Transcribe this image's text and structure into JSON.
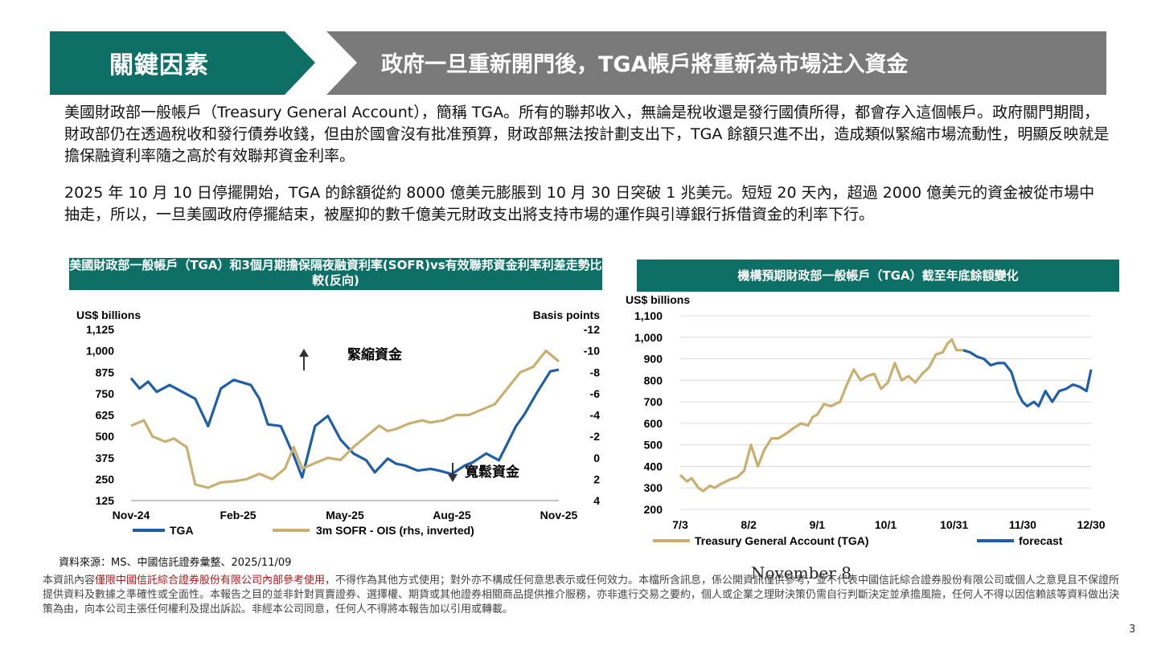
{
  "header": {
    "left_title": "關鍵因素",
    "right_title": "政府一旦重新開門後，TGA帳戶將重新為市場注入資金"
  },
  "body": {
    "para1": "美國財政部一般帳戶（Treasury General Account），簡稱 TGA。所有的聯邦收入，無論是稅收還是發行國債所得，都會存入這個帳戶。政府關門期間，財政部仍在透過稅收和發行債券收錢，但由於國會沒有批准預算，財政部無法按計劃支出下，TGA 餘額只進不出，造成類似緊縮市場流動性，明顯反映就是擔保融資利率隨之高於有效聯邦資金利率。",
    "para2": "2025 年 10 月 10 日停擺開始，TGA 的餘額從約 8000 億美元膨脹到 10 月 30 日突破 1 兆美元。短短 20 天內，超過 2000 億美元的資金被從市場中抽走，所以，一旦美國政府停擺結束，被壓抑的數千億美元財政支出將支持市場的運作與引導銀行拆借資金的利率下行。"
  },
  "chart_left": {
    "title": "美國財政部一般帳戶（TGA）和3個月期擔保隔夜融資利率(SOFR)vs有效聯邦資金利率利差走勢比較(反向)"
  },
  "chart_right": {
    "title": "機構預期財政部一般帳戶（TGA）截至年底餘額變化"
  },
  "chart_data": [
    {
      "type": "line",
      "ylabel_left": "US$ billions",
      "ylabel_right": "Basis points",
      "y_left_ticks": [
        "1,125",
        "1,000",
        "875",
        "750",
        "625",
        "500",
        "375",
        "250",
        "125"
      ],
      "y_right_ticks": [
        "-12",
        "-10",
        "-8",
        "-6",
        "-4",
        "-2",
        "0",
        "2",
        "4"
      ],
      "ylim_left": [
        125,
        1125
      ],
      "ylim_right": [
        4,
        -12
      ],
      "x_ticks": [
        "Nov-24",
        "Feb-25",
        "May-25",
        "Aug-25",
        "Nov-25"
      ],
      "annotations": {
        "up": "緊縮資金",
        "down": "寬鬆資金"
      },
      "series": [
        {
          "name": "TGA",
          "axis": "left",
          "color": "#1f5fa8",
          "t": [
            0,
            2,
            4,
            6,
            9,
            12,
            15,
            18,
            21,
            24,
            28,
            30,
            32,
            35,
            38,
            40,
            43,
            46,
            49,
            52,
            55,
            57,
            60,
            62,
            64,
            67,
            70,
            72,
            75,
            78,
            80,
            83,
            86,
            88,
            90,
            92,
            95,
            98,
            100
          ],
          "values": [
            840,
            780,
            820,
            760,
            800,
            760,
            720,
            560,
            780,
            830,
            800,
            720,
            570,
            560,
            390,
            260,
            560,
            620,
            480,
            400,
            360,
            290,
            370,
            340,
            330,
            300,
            310,
            300,
            280,
            330,
            350,
            400,
            360,
            460,
            560,
            630,
            760,
            880,
            890
          ]
        },
        {
          "name": "3m SOFR - OIS (rhs, inverted)",
          "axis": "right",
          "color": "#c9b071",
          "t": [
            0,
            3,
            5,
            8,
            10,
            13,
            15,
            18,
            21,
            24,
            27,
            30,
            33,
            36,
            38,
            40,
            43,
            46,
            49,
            52,
            55,
            58,
            60,
            62,
            65,
            68,
            70,
            73,
            76,
            79,
            82,
            85,
            88,
            91,
            94,
            97,
            100
          ],
          "values": [
            -3,
            -3.5,
            -2,
            -1.5,
            -1.8,
            -1,
            2.5,
            2.8,
            2.3,
            2.2,
            2,
            1.5,
            2,
            1,
            -1,
            1,
            0.5,
            0,
            0.2,
            -1,
            -2,
            -3,
            -2.5,
            -2.7,
            -3.2,
            -3.5,
            -3.3,
            -3.5,
            -4,
            -4,
            -4.5,
            -5,
            -6.5,
            -8,
            -8.5,
            -10,
            -9
          ]
        }
      ]
    },
    {
      "type": "line",
      "ylabel": "US$ billions",
      "ylim": [
        200,
        1100
      ],
      "y_ticks": [
        1100,
        1000,
        900,
        800,
        700,
        600,
        500,
        400,
        300,
        200
      ],
      "y_tick_labels": [
        "1,100",
        "1,000",
        "900",
        "800",
        "700",
        "600",
        "500",
        "400",
        "300",
        "200"
      ],
      "x_ticks": [
        "7/3",
        "8/2",
        "9/1",
        "10/1",
        "10/31",
        "11/30",
        "12/30"
      ],
      "x_days": [
        0,
        30,
        60,
        90,
        120,
        150,
        180
      ],
      "series": [
        {
          "name": "Treasury General Account (TGA)",
          "color": "#c9b071",
          "x": [
            0,
            3,
            5,
            8,
            10,
            13,
            15,
            18,
            22,
            25,
            28,
            31,
            34,
            37,
            40,
            43,
            46,
            50,
            53,
            56,
            58,
            60,
            63,
            66,
            70,
            73,
            76,
            79,
            82,
            85,
            88,
            91,
            94,
            97,
            100,
            103,
            106,
            109,
            112,
            115,
            117,
            119,
            121,
            124
          ],
          "values": [
            360,
            330,
            345,
            300,
            285,
            310,
            300,
            320,
            340,
            350,
            380,
            500,
            400,
            480,
            530,
            530,
            550,
            580,
            600,
            590,
            630,
            640,
            690,
            680,
            700,
            780,
            850,
            800,
            820,
            830,
            760,
            790,
            880,
            800,
            820,
            790,
            830,
            860,
            920,
            930,
            970,
            990,
            940,
            940
          ]
        },
        {
          "name": "forecast",
          "color": "#1f5fa8",
          "x": [
            124,
            127,
            130,
            133,
            136,
            139,
            142,
            145,
            148,
            150,
            152,
            155,
            157,
            160,
            163,
            166,
            169,
            172,
            175,
            178,
            180
          ],
          "values": [
            940,
            930,
            910,
            900,
            870,
            880,
            880,
            840,
            740,
            700,
            680,
            700,
            680,
            750,
            700,
            750,
            760,
            780,
            770,
            750,
            850
          ]
        }
      ]
    }
  ],
  "footer": {
    "source": "資料來源：MS、中國信託證券彙整、2025/11/09",
    "disclaimer_pre": "本資訊內容",
    "disclaimer_red": "僅限中國信託綜合證券股份有限公司內部參考使用",
    "disclaimer_post": "，不得作為其他方式使用；對外亦不構成任何意思表示或任何效力。本檔所含訊息，係公開資訊僅供參考，並不代表中國信託綜合證券股份有限公司或個人之意見且不保證所提供資料及數據之準確性或全面性。本報告之目的並非針對買賣證券、選擇權、期貨或其他證券相關商品提供推介服務，亦非進行交易之要約，個人或企業之理財決策仍需自行判斷決定並承擔風險，任何人不得以因信賴該等資料做出決策為由，向本公司主張任何權利及提出訴訟。非經本公司同意，任何人不得將本報告加以引用或轉載。",
    "stamp": "November 8",
    "page": "3"
  }
}
